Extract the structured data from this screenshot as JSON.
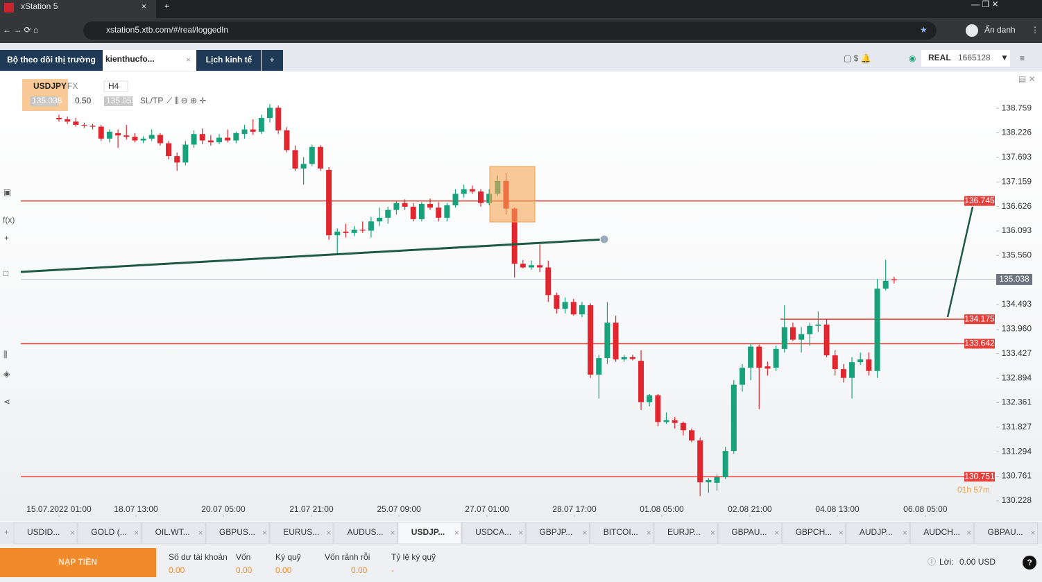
{
  "browser": {
    "tab_title": "xStation 5",
    "url": "xstation5.xtb.com/#/real/loggedIn",
    "profile": "Ẩn danh"
  },
  "header": {
    "watchlist": "Bộ theo dõi thị trường",
    "workspace": "kienthucfo...",
    "calendar": "Lịch kinh tế",
    "account_type": "REAL",
    "account_id": "1665128"
  },
  "chart_data": {
    "type": "candlestick",
    "symbol": "USDJPY",
    "market": "FX",
    "interval": "H4",
    "sell_price": "135.038",
    "volume": "0.50",
    "buy_price": "135.055",
    "sltp": "SL/TP",
    "timer": "01h 57m",
    "up_color": "#17a27b",
    "down_color": "#e0262f",
    "xlim": [
      -4.52,
      111.1
    ],
    "ylim": [
      129.88,
      139.53
    ],
    "yticks": [
      138.759,
      138.226,
      137.693,
      137.159,
      136.626,
      136.093,
      {
        "value": 135.56,
        "label": "135.560"
      },
      134.493,
      {
        "value": 133.96,
        "label": "133.960"
      },
      133.427,
      132.894,
      132.361,
      131.827,
      131.294,
      130.761,
      130.228
    ],
    "xticks": [
      {
        "value": 0,
        "label": "15.07.2022 01:00"
      },
      {
        "value": 9.13,
        "label": "18.07 13:00"
      },
      {
        "value": 19.49,
        "label": "20.07 05:00"
      },
      {
        "value": 29.93,
        "label": "21.07 21:00"
      },
      {
        "value": 40.3,
        "label": "25.07 09:00"
      },
      {
        "value": 50.74,
        "label": "27.07 01:00"
      },
      {
        "value": 61.1,
        "label": "28.07 17:00"
      },
      {
        "value": 71.46,
        "label": "01.08 05:00"
      },
      {
        "value": 81.9,
        "label": "02.08 21:00"
      },
      {
        "value": 92.27,
        "label": "04.08 13:00"
      },
      {
        "value": 102.7,
        "label": "06.08 05:00"
      }
    ],
    "levels": [
      136.745,
      134.175,
      133.642,
      130.751
    ],
    "level_color": "#e8403a",
    "current_price": 135.038,
    "x": [
      0,
      1,
      2,
      3,
      4,
      5,
      6,
      7,
      8,
      9,
      10,
      11,
      12,
      13,
      14,
      15,
      16,
      17,
      18,
      19,
      20,
      21,
      22,
      23,
      24,
      25,
      26,
      27,
      28,
      29,
      30,
      31,
      32,
      33,
      34,
      35,
      36,
      37,
      38,
      39,
      40,
      41,
      42,
      43,
      44,
      45,
      46,
      47,
      48,
      49,
      50,
      51,
      52,
      53,
      54,
      55,
      56,
      57,
      58,
      59,
      60,
      61,
      62,
      63,
      64,
      65,
      66,
      67,
      68,
      69,
      70,
      71,
      72,
      73,
      74,
      75,
      76,
      77,
      78,
      79,
      80,
      81,
      82,
      83,
      84,
      85,
      86,
      87,
      88,
      89,
      90,
      91,
      92,
      93,
      94,
      95,
      96,
      97,
      98,
      99
    ],
    "ohlc": [
      [
        138.55,
        138.62,
        138.47,
        138.52
      ],
      [
        138.52,
        138.58,
        138.42,
        138.47
      ],
      [
        138.47,
        138.55,
        138.36,
        138.4
      ],
      [
        138.4,
        138.45,
        138.33,
        138.38
      ],
      [
        138.38,
        138.42,
        138.3,
        138.36
      ],
      [
        138.36,
        138.4,
        138.05,
        138.1
      ],
      [
        138.1,
        138.3,
        138.02,
        138.25
      ],
      [
        138.22,
        138.3,
        137.9,
        138.17
      ],
      [
        138.17,
        138.4,
        138.08,
        138.14
      ],
      [
        138.14,
        138.22,
        138.02,
        138.06
      ],
      [
        138.06,
        138.15,
        138.0,
        138.1
      ],
      [
        138.1,
        138.3,
        138.05,
        138.18
      ],
      [
        138.18,
        138.22,
        137.95,
        138.0
      ],
      [
        138.0,
        138.05,
        137.65,
        137.72
      ],
      [
        137.72,
        137.8,
        137.4,
        137.58
      ],
      [
        137.58,
        138.05,
        137.52,
        137.97
      ],
      [
        137.97,
        138.28,
        137.9,
        138.2
      ],
      [
        138.2,
        138.32,
        137.98,
        138.06
      ],
      [
        138.06,
        138.18,
        137.95,
        138.02
      ],
      [
        138.02,
        138.2,
        137.98,
        138.12
      ],
      [
        138.12,
        138.3,
        138.02,
        138.06
      ],
      [
        138.06,
        138.25,
        138.0,
        138.22
      ],
      [
        138.2,
        138.4,
        138.1,
        138.3
      ],
      [
        138.3,
        138.52,
        138.18,
        138.25
      ],
      [
        138.25,
        138.62,
        138.2,
        138.55
      ],
      [
        138.55,
        138.85,
        138.45,
        138.77
      ],
      [
        138.77,
        138.82,
        138.2,
        138.28
      ],
      [
        138.28,
        138.35,
        137.8,
        137.85
      ],
      [
        137.85,
        137.95,
        137.4,
        137.45
      ],
      [
        137.45,
        137.7,
        137.1,
        137.55
      ],
      [
        137.55,
        137.97,
        137.5,
        137.92
      ],
      [
        137.92,
        137.96,
        137.4,
        137.45
      ],
      [
        137.42,
        137.48,
        135.9,
        136.0
      ],
      [
        136.0,
        136.15,
        135.6,
        136.08
      ],
      [
        136.08,
        136.25,
        135.95,
        136.05
      ],
      [
        136.05,
        136.2,
        135.98,
        136.12
      ],
      [
        136.12,
        136.3,
        136.05,
        136.1
      ],
      [
        136.1,
        136.4,
        135.95,
        136.3
      ],
      [
        136.3,
        136.6,
        136.2,
        136.38
      ],
      [
        136.38,
        136.62,
        136.25,
        136.55
      ],
      [
        136.55,
        136.75,
        136.45,
        136.7
      ],
      [
        136.7,
        136.78,
        136.55,
        136.62
      ],
      [
        136.62,
        136.7,
        136.3,
        136.35
      ],
      [
        136.35,
        136.72,
        136.3,
        136.68
      ],
      [
        136.68,
        136.8,
        136.55,
        136.6
      ],
      [
        136.6,
        136.72,
        136.3,
        136.38
      ],
      [
        136.38,
        136.7,
        136.3,
        136.65
      ],
      [
        136.65,
        137.0,
        136.6,
        136.9
      ],
      [
        136.9,
        137.1,
        136.82,
        137.0
      ],
      [
        137.0,
        137.08,
        136.9,
        136.95
      ],
      [
        136.95,
        137.0,
        136.62,
        136.7
      ],
      [
        136.7,
        137.0,
        136.65,
        136.9
      ],
      [
        136.9,
        137.3,
        136.85,
        137.18
      ],
      [
        137.18,
        137.35,
        136.45,
        136.58
      ],
      [
        136.58,
        136.6,
        135.08,
        135.38
      ],
      [
        135.38,
        135.46,
        135.28,
        135.3
      ],
      [
        135.3,
        135.45,
        135.25,
        135.35
      ],
      [
        135.35,
        135.8,
        135.2,
        135.3
      ],
      [
        135.3,
        135.45,
        134.55,
        134.7
      ],
      [
        134.7,
        134.75,
        134.3,
        134.4
      ],
      [
        134.4,
        134.65,
        134.3,
        134.55
      ],
      [
        134.55,
        134.62,
        134.25,
        134.28
      ],
      [
        134.28,
        134.55,
        134.22,
        134.48
      ],
      [
        134.48,
        134.52,
        132.9,
        132.97
      ],
      [
        132.97,
        133.4,
        132.45,
        133.33
      ],
      [
        133.33,
        134.55,
        133.2,
        134.1
      ],
      [
        134.1,
        134.25,
        133.25,
        133.3
      ],
      [
        133.3,
        133.4,
        133.25,
        133.35
      ],
      [
        133.35,
        133.4,
        133.28,
        133.31
      ],
      [
        133.27,
        133.5,
        132.2,
        132.37
      ],
      [
        132.37,
        132.55,
        132.28,
        132.52
      ],
      [
        132.52,
        132.55,
        131.85,
        131.94
      ],
      [
        131.94,
        132.15,
        131.9,
        131.98
      ],
      [
        131.98,
        132.05,
        131.8,
        131.92
      ],
      [
        131.92,
        131.95,
        131.65,
        131.76
      ],
      [
        131.76,
        131.8,
        131.5,
        131.54
      ],
      [
        131.54,
        131.6,
        130.33,
        130.63
      ],
      [
        130.63,
        130.72,
        130.4,
        130.68
      ],
      [
        130.62,
        130.8,
        130.45,
        130.74
      ],
      [
        130.74,
        131.4,
        130.7,
        131.31
      ],
      [
        131.31,
        132.85,
        131.25,
        132.75
      ],
      [
        132.75,
        133.2,
        132.6,
        133.12
      ],
      [
        133.12,
        133.65,
        132.85,
        133.58
      ],
      [
        133.58,
        133.62,
        132.22,
        133.12
      ],
      [
        133.15,
        133.25,
        132.95,
        133.1
      ],
      [
        133.12,
        133.6,
        133.05,
        133.53
      ],
      [
        133.53,
        134.48,
        133.45,
        134.0
      ],
      [
        134.0,
        134.1,
        133.7,
        133.73
      ],
      [
        133.73,
        134.0,
        133.45,
        133.85
      ],
      [
        133.85,
        134.1,
        133.6,
        134.03
      ],
      [
        134.03,
        134.35,
        133.9,
        134.06
      ],
      [
        134.06,
        134.18,
        133.35,
        133.39
      ],
      [
        133.39,
        133.5,
        132.95,
        133.09
      ],
      [
        133.09,
        133.2,
        132.8,
        132.9
      ],
      [
        132.9,
        133.35,
        132.45,
        133.24
      ],
      [
        133.24,
        133.45,
        133.18,
        133.3
      ],
      [
        133.3,
        133.45,
        132.95,
        133.05
      ],
      [
        133.05,
        135.05,
        132.9,
        134.84
      ],
      [
        134.84,
        135.46,
        134.8,
        135.01
      ],
      [
        135.04,
        135.1,
        134.95,
        135.02
      ]
    ]
  },
  "instrument_tabs": [
    "USDID...",
    "GOLD (...",
    "OIL.WT...",
    "GBPUS...",
    "EURUS...",
    "AUDUS...",
    "USDJP...",
    "USDCA...",
    "GBPJP...",
    "BITCOI...",
    "EURJP...",
    "GBPAU...",
    "GBPCH...",
    "AUDJP...",
    "AUDCH...",
    "GBPAU..."
  ],
  "footer": {
    "deposit": "NẠP TIỀN",
    "fields": [
      {
        "label": "Số dư tài khoản",
        "value": "0.00"
      },
      {
        "label": "Vốn",
        "value": "0.00"
      },
      {
        "label": "Ký quỹ",
        "value": "0.00"
      },
      {
        "label": "Vốn rảnh rỗi",
        "value": "0.00"
      },
      {
        "label": "Tỷ lệ ký quỹ",
        "value": "-"
      }
    ],
    "profit_label": "Lời:",
    "profit_value": "0.00 USD"
  }
}
